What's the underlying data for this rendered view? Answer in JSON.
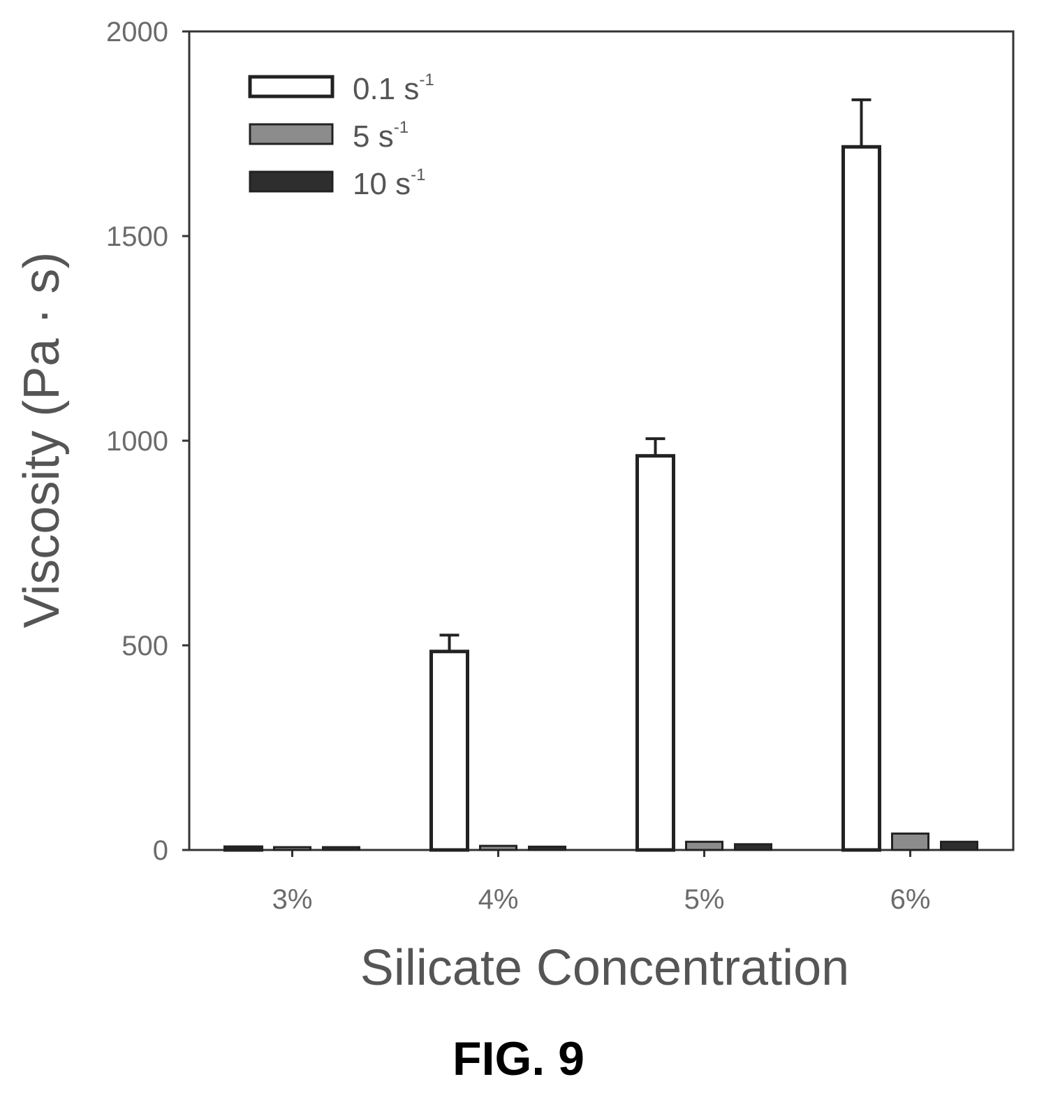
{
  "figure_caption": "FIG. 9",
  "chart_data": {
    "type": "bar",
    "title": "",
    "xlabel": "Silicate Concentration",
    "ylabel": "Viscosity (Pa · s)",
    "ylim": [
      0,
      2000
    ],
    "yticks": [
      0,
      500,
      1000,
      1500,
      2000
    ],
    "categories": [
      "3%",
      "4%",
      "5%",
      "6%"
    ],
    "grid": false,
    "legend_position": "top-left",
    "series": [
      {
        "name": "0.1 s",
        "superscript": "-1",
        "color": "#ffffff",
        "values": [
          3,
          485,
          963,
          1718
        ],
        "errors": [
          2,
          40,
          42,
          115
        ]
      },
      {
        "name": "5 s",
        "superscript": "-1",
        "color": "#8c8c8c",
        "values": [
          2,
          10,
          20,
          40
        ],
        "errors": [
          0,
          0,
          0,
          0
        ]
      },
      {
        "name": "10 s",
        "superscript": "-1",
        "color": "#2e2e2e",
        "values": [
          2,
          8,
          14,
          20
        ],
        "errors": [
          0,
          0,
          0,
          0
        ]
      }
    ]
  }
}
